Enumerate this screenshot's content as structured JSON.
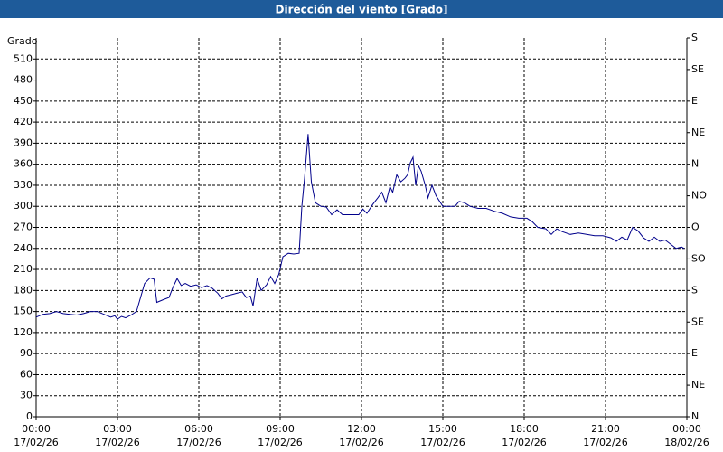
{
  "chart_data": {
    "type": "line",
    "title": "Dirección del viento [Grado]",
    "ylabel": "Grado",
    "xlim": [
      0,
      24
    ],
    "xticks": [
      {
        "value": 0,
        "label": "00:00 17/02/26"
      },
      {
        "value": 3,
        "label": "03:00 17/02/26"
      },
      {
        "value": 6,
        "label": "06:00 17/02/26"
      },
      {
        "value": 9,
        "label": "09:00 17/02/26"
      },
      {
        "value": 12,
        "label": "12:00 17/02/26"
      },
      {
        "value": 15,
        "label": "15:00 17/02/26"
      },
      {
        "value": 18,
        "label": "18:00 17/02/26"
      },
      {
        "value": 21,
        "label": "21:00 17/02/26"
      },
      {
        "value": 24,
        "label": "00:00 18/02/26"
      }
    ],
    "ylim": [
      0,
      540
    ],
    "yticks": [
      0,
      30,
      60,
      90,
      120,
      150,
      180,
      210,
      240,
      270,
      300,
      330,
      360,
      390,
      420,
      450,
      480,
      510
    ],
    "y2lim": [
      0,
      540
    ],
    "y2ticks": [
      {
        "value": 0,
        "label": "N"
      },
      {
        "value": 45,
        "label": "NE"
      },
      {
        "value": 90,
        "label": "E"
      },
      {
        "value": 135,
        "label": "SE"
      },
      {
        "value": 180,
        "label": "S"
      },
      {
        "value": 225,
        "label": "SO"
      },
      {
        "value": 270,
        "label": "O"
      },
      {
        "value": 315,
        "label": "NO"
      },
      {
        "value": 360,
        "label": "N"
      },
      {
        "value": 405,
        "label": "NE"
      },
      {
        "value": 450,
        "label": "E"
      },
      {
        "value": 495,
        "label": "SE"
      },
      {
        "value": 540,
        "label": "S"
      }
    ],
    "grid": true,
    "x": [
      0,
      0.25,
      0.5,
      0.75,
      1,
      1.25,
      1.5,
      1.75,
      2,
      2.25,
      2.5,
      2.75,
      2.9,
      3.0,
      3.15,
      3.3,
      3.5,
      3.7,
      3.85,
      4.0,
      4.2,
      4.35,
      4.45,
      4.7,
      4.9,
      5.05,
      5.2,
      5.35,
      5.5,
      5.7,
      5.9,
      6.1,
      6.3,
      6.5,
      6.7,
      6.85,
      7.0,
      7.2,
      7.4,
      7.6,
      7.75,
      7.9,
      8.0,
      8.15,
      8.3,
      8.5,
      8.65,
      8.8,
      8.95,
      9.1,
      9.3,
      9.5,
      9.7,
      9.8,
      9.9,
      10.03,
      10.15,
      10.3,
      10.5,
      10.7,
      10.9,
      11.1,
      11.3,
      11.6,
      11.9,
      12.05,
      12.2,
      12.4,
      12.6,
      12.75,
      12.9,
      13.05,
      13.15,
      13.3,
      13.45,
      13.6,
      13.7,
      13.8,
      13.9,
      14.0,
      14.1,
      14.2,
      14.35,
      14.45,
      14.6,
      14.75,
      15.0,
      15.2,
      15.45,
      15.6,
      15.8,
      16.0,
      16.3,
      16.6,
      16.9,
      17.2,
      17.5,
      17.8,
      18.1,
      18.3,
      18.5,
      18.8,
      19.0,
      19.2,
      19.4,
      19.7,
      20.0,
      20.3,
      20.6,
      20.9,
      21.2,
      21.4,
      21.6,
      21.8,
      22.0,
      22.2,
      22.4,
      22.6,
      22.8,
      23.0,
      23.2,
      23.4,
      23.6,
      23.8,
      23.9
    ],
    "series": [
      {
        "color": "#00008b",
        "values": [
          142,
          146,
          147,
          150,
          147,
          146,
          145,
          147,
          150,
          150,
          146,
          142,
          144,
          139,
          143,
          141,
          145,
          150,
          170,
          190,
          198,
          196,
          163,
          167,
          170,
          185,
          197,
          187,
          190,
          186,
          188,
          184,
          187,
          183,
          176,
          168,
          172,
          174,
          176,
          178,
          170,
          172,
          158,
          197,
          180,
          188,
          200,
          190,
          203,
          228,
          233,
          232,
          233,
          300,
          340,
          403,
          335,
          305,
          300,
          299,
          288,
          295,
          288,
          288,
          288,
          296,
          290,
          302,
          312,
          320,
          305,
          328,
          320,
          345,
          335,
          340,
          345,
          362,
          370,
          330,
          358,
          350,
          330,
          312,
          330,
          315,
          300,
          300,
          300,
          307,
          305,
          300,
          297,
          297,
          293,
          290,
          285,
          283,
          283,
          278,
          270,
          268,
          260,
          268,
          264,
          260,
          262,
          260,
          258,
          258,
          255,
          250,
          256,
          252,
          270,
          265,
          255,
          250,
          256,
          250,
          252,
          246,
          240,
          242,
          240
        ]
      }
    ]
  }
}
